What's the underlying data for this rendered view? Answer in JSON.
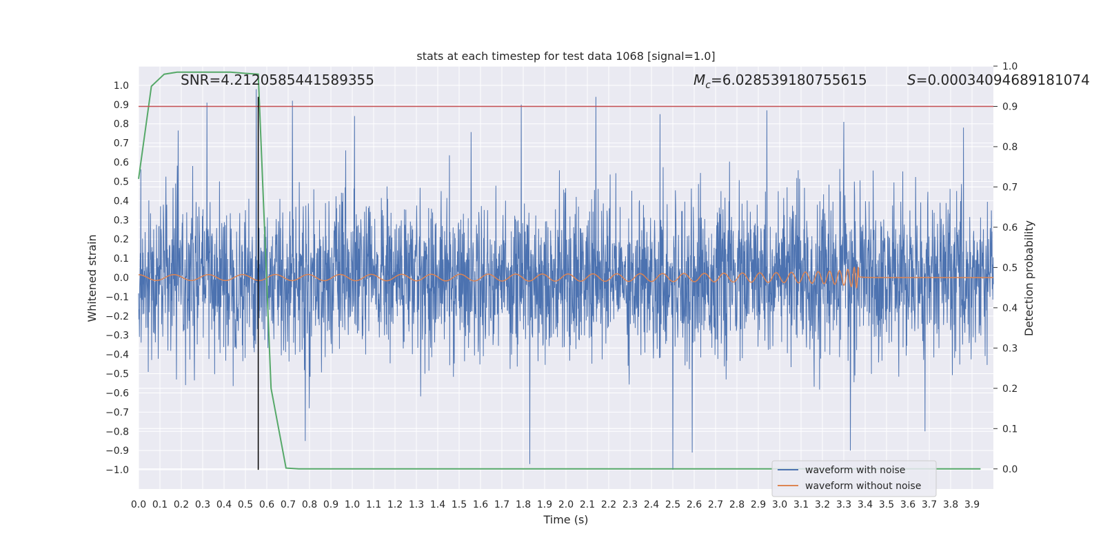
{
  "chart_data": {
    "type": "line",
    "title": "stats at each timestep for test data 1068 [signal=1.0]",
    "xlabel": "Time (s)",
    "ylabel": "Whitened strain",
    "y2label": "Detection probability",
    "xlim": [
      0.0,
      4.0
    ],
    "ylim": [
      -1.1,
      1.1
    ],
    "y2lim": [
      -0.05,
      1.0
    ],
    "x_ticks": [
      "0.0",
      "0.1",
      "0.2",
      "0.3",
      "0.4",
      "0.5",
      "0.6",
      "0.7",
      "0.8",
      "0.9",
      "1.0",
      "1.1",
      "1.2",
      "1.3",
      "1.4",
      "1.5",
      "1.6",
      "1.7",
      "1.8",
      "1.9",
      "2.0",
      "2.1",
      "2.2",
      "2.3",
      "2.4",
      "2.5",
      "2.6",
      "2.7",
      "2.8",
      "2.9",
      "3.0",
      "3.1",
      "3.2",
      "3.3",
      "3.4",
      "3.5",
      "3.6",
      "3.7",
      "3.8",
      "3.9"
    ],
    "y_ticks": [
      "1.0",
      "0.9",
      "0.8",
      "0.7",
      "0.6",
      "0.5",
      "0.4",
      "0.3",
      "0.2",
      "0.1",
      "0.0",
      "-0.1",
      "-0.2",
      "-0.3",
      "-0.4",
      "-0.5",
      "-0.6",
      "-0.7",
      "-0.8",
      "-0.9",
      "-1.0"
    ],
    "y2_ticks": [
      "1.0",
      "0.9",
      "0.8",
      "0.7",
      "0.6",
      "0.5",
      "0.4",
      "0.3",
      "0.2",
      "0.1",
      "0.0"
    ],
    "annotations": {
      "snr": "SNR=4.2120585441589355",
      "mc_symbol": "M",
      "mc_sub": "c",
      "mc_value": "=6.028539180755615",
      "s_symbol": "S",
      "s_value": "=0.00034094689181074"
    },
    "threshold_y2": 0.9,
    "marker_x": 0.56,
    "series": [
      {
        "name": "waveform with noise",
        "color": "#4c72b0",
        "note": "dense whitened noise, amplitude mostly within -0.5..0.6 with peaks near +/-0.95",
        "peaks": [
          [
            0.32,
            0.91
          ],
          [
            0.55,
            0.98
          ],
          [
            0.72,
            0.92
          ],
          [
            1.01,
            0.84
          ],
          [
            1.79,
            0.9
          ],
          [
            2.14,
            0.94
          ],
          [
            2.44,
            0.85
          ],
          [
            2.94,
            0.87
          ],
          [
            3.3,
            0.81
          ],
          [
            3.86,
            0.78
          ],
          [
            2.5,
            -1.0
          ],
          [
            1.83,
            -0.97
          ],
          [
            3.33,
            -0.9
          ],
          [
            0.78,
            -0.85
          ],
          [
            2.59,
            -0.91
          ],
          [
            3.68,
            -0.8
          ]
        ]
      },
      {
        "name": "waveform without noise",
        "color": "#dd8452",
        "note": "chirp signal, amplitude grows from 0.015 to 0.12, merger at ~3.37 s",
        "amplitude_start": 0.015,
        "amplitude_peak": 0.12,
        "merger_time": 3.37
      },
      {
        "name": "detection probability",
        "color": "#55a868",
        "axis": "y2",
        "x": [
          0.0,
          0.06,
          0.12,
          0.18,
          0.25,
          0.31,
          0.37,
          0.43,
          0.5,
          0.56,
          0.62,
          0.69,
          0.75,
          0.81,
          1.0,
          2.0,
          3.0,
          3.94
        ],
        "values": [
          0.72,
          0.95,
          0.98,
          0.985,
          0.985,
          0.985,
          0.985,
          0.985,
          0.982,
          0.98,
          0.2,
          0.002,
          0.0,
          0.0,
          0.0,
          0.0,
          0.0,
          0.0
        ]
      }
    ],
    "legend": {
      "placement": "lower-right",
      "entries": [
        {
          "label": "waveform with noise",
          "color": "#4c72b0"
        },
        {
          "label": "waveform without noise",
          "color": "#dd8452"
        }
      ]
    },
    "colors": {
      "background": "#eaeaf2",
      "grid": "#ffffff",
      "threshold": "#c44e52",
      "marker": "#000000"
    }
  }
}
